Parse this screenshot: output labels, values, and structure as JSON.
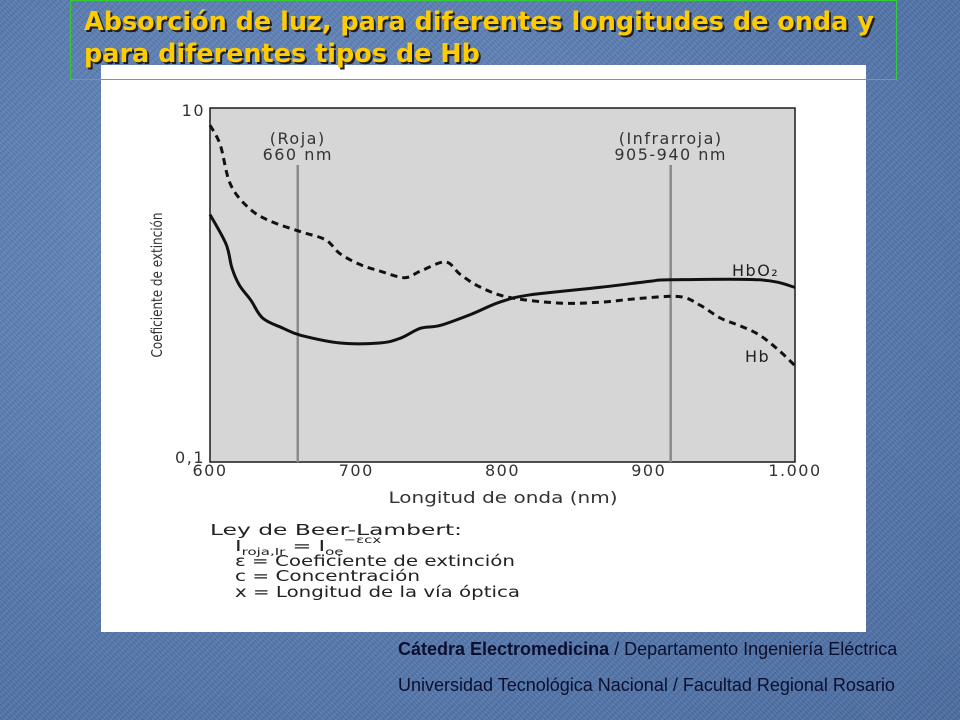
{
  "slide": {
    "title_line1": "Absorción de luz, para diferentes longitudes de onda y",
    "title_line2": "para diferentes tipos de Hb"
  },
  "chart_data": {
    "type": "line",
    "xlabel": "Longitud de onda (nm)",
    "ylabel": "Coeficiente de extinción",
    "xlim": [
      600,
      1000
    ],
    "ylim": [
      0.1,
      10
    ],
    "yscale": "log",
    "grid": false,
    "x_ticks": [
      600,
      700,
      800,
      900,
      1000
    ],
    "x_tick_labels": [
      "600",
      "700",
      "800",
      "900",
      "1.000"
    ],
    "y_ticks": [
      10,
      0.1
    ],
    "y_tick_labels": [
      "10",
      "0,1"
    ],
    "markers": [
      {
        "x": 660,
        "label_line1": "(Roja)",
        "label_line2": "660 nm"
      },
      {
        "x": 915,
        "label_line1": "(Infrarroja)",
        "label_line2": "905-940 nm"
      }
    ],
    "series": [
      {
        "name": "HbO₂",
        "style": "solid",
        "x": [
          600,
          611,
          615,
          620,
          628,
          636,
          650,
          662,
          689,
          716,
          730,
          744,
          757,
          778,
          798,
          819,
          867,
          901,
          915,
          976,
          1000
        ],
        "y": [
          2.5,
          1.7,
          1.25,
          1.0,
          0.82,
          0.65,
          0.57,
          0.52,
          0.47,
          0.47,
          0.5,
          0.57,
          0.59,
          0.68,
          0.8,
          0.88,
          0.97,
          1.05,
          1.07,
          1.07,
          0.97
        ]
      },
      {
        "name": "Hb",
        "style": "dashed",
        "x": [
          600,
          607,
          614,
          627,
          641,
          662,
          679,
          689,
          703,
          716,
          733,
          744,
          761,
          771,
          785,
          805,
          839,
          867,
          894,
          921,
          935,
          949,
          962,
          976,
          990,
          1000
        ],
        "y": [
          8.0,
          6.2,
          3.7,
          2.7,
          2.3,
          2.0,
          1.8,
          1.5,
          1.3,
          1.2,
          1.1,
          1.2,
          1.35,
          1.15,
          0.97,
          0.85,
          0.79,
          0.8,
          0.84,
          0.86,
          0.77,
          0.65,
          0.59,
          0.52,
          0.42,
          0.35
        ]
      }
    ],
    "colors": {
      "plot_background": "#d6d6d6",
      "line": "#111111",
      "marker_line": "#8a8a8a"
    }
  },
  "formula": {
    "heading": "Ley de Beer-Lambert:",
    "eq_I": "I",
    "eq_sub1": "roja,Ir",
    "eq_mid": " = I",
    "eq_sub2": "oe",
    "eq_sup": "−εcx",
    "lines": [
      "ε = Coeficiente de extinción",
      "c = Concentración",
      "x = Longitud de la vía óptica"
    ]
  },
  "footer": {
    "line1_bold": "Cátedra Electromedicina",
    "line1_rest": " / Departamento Ingeniería Eléctrica",
    "line2": "Universidad Tecnológica Nacional / Facultad Regional Rosario"
  },
  "colors": {
    "background": "#5a7eb3",
    "title_text": "#ffcc00",
    "title_border": "#33cc33",
    "footer_text": "#0b0f2e",
    "panel": "#ffffff"
  }
}
